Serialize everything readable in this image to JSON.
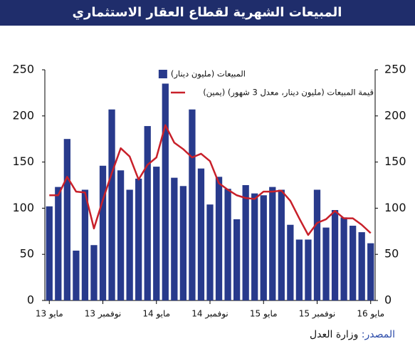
{
  "chart_data": {
    "type": "bar",
    "title": "المبيعات الشهرية لقطاع العقار الاستثماري",
    "categories": [
      "مايو 13",
      null,
      null,
      null,
      null,
      null,
      "نوفمبر 13",
      null,
      null,
      null,
      null,
      null,
      "مايو 14",
      null,
      null,
      null,
      null,
      null,
      "نوفمبر 14",
      null,
      null,
      null,
      null,
      null,
      "مايو 15",
      null,
      null,
      null,
      null,
      null,
      "نوفمبر 15",
      null,
      null,
      null,
      null,
      null,
      "مايو 16"
    ],
    "series": [
      {
        "name": "المبيعات (مليون دينار)",
        "type": "bar",
        "color": "#283a8c",
        "values": [
          102,
          123,
          175,
          54,
          120,
          60,
          146,
          207,
          141,
          120,
          132,
          189,
          145,
          235,
          133,
          124,
          207,
          143,
          104,
          134,
          121,
          88,
          125,
          116,
          114,
          123,
          120,
          82,
          66,
          66,
          120,
          79,
          98,
          90,
          81,
          74,
          62
        ]
      },
      {
        "name": "قيمة المبيعات (مليون دينار، معدل 3 شهور) (يمين)",
        "type": "line",
        "axis": "y2",
        "color": "#c8202a",
        "values": [
          114,
          114,
          134,
          118,
          117,
          78,
          109,
          138,
          165,
          156,
          131,
          147,
          155,
          190,
          171,
          164,
          155,
          159,
          151,
          127,
          120,
          114,
          111,
          110,
          118,
          118,
          119,
          108,
          89,
          71,
          84,
          88,
          97,
          89,
          89,
          82,
          73
        ]
      }
    ],
    "ylim": [
      0,
      250
    ],
    "yticks": [
      0,
      50,
      100,
      150,
      200,
      250
    ],
    "y2lim": [
      0,
      250
    ],
    "y2ticks": [
      0,
      50,
      100,
      150,
      200,
      250
    ],
    "grid": false
  },
  "source": {
    "label": "المصدر:",
    "text": "وزارة العدل"
  }
}
